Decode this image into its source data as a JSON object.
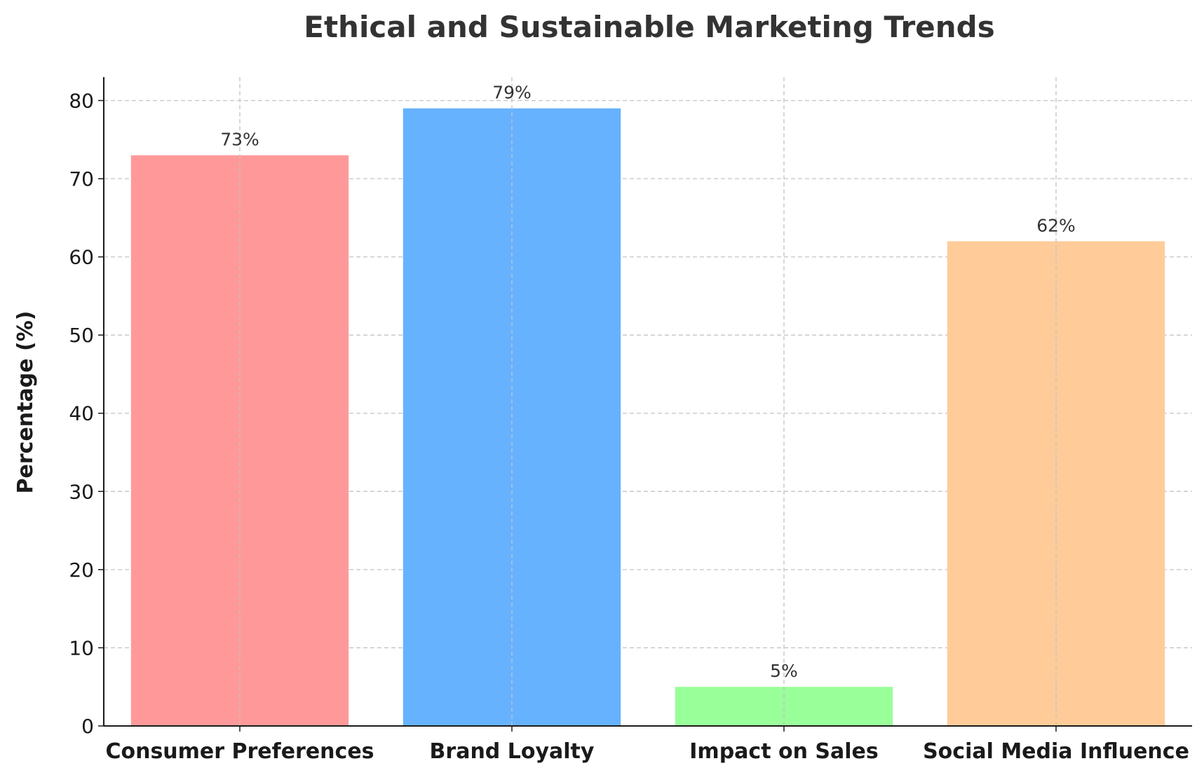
{
  "chart_data": {
    "type": "bar",
    "title": "Ethical and Sustainable Marketing Trends",
    "xlabel": "",
    "ylabel": "Percentage (%)",
    "categories": [
      "Consumer Preferences",
      "Brand Loyalty",
      "Impact on Sales",
      "Social Media Influence"
    ],
    "values": [
      73,
      79,
      5,
      62
    ],
    "data_labels": [
      "73%",
      "79%",
      "5%",
      "62%"
    ],
    "colors": [
      "#ff9999",
      "#66b2ff",
      "#99ff99",
      "#ffcc99"
    ],
    "ylim": [
      0,
      83
    ],
    "yticks": [
      "0",
      "10",
      "20",
      "30",
      "40",
      "50",
      "60",
      "70",
      "80"
    ],
    "grid": true,
    "legend": "none"
  }
}
